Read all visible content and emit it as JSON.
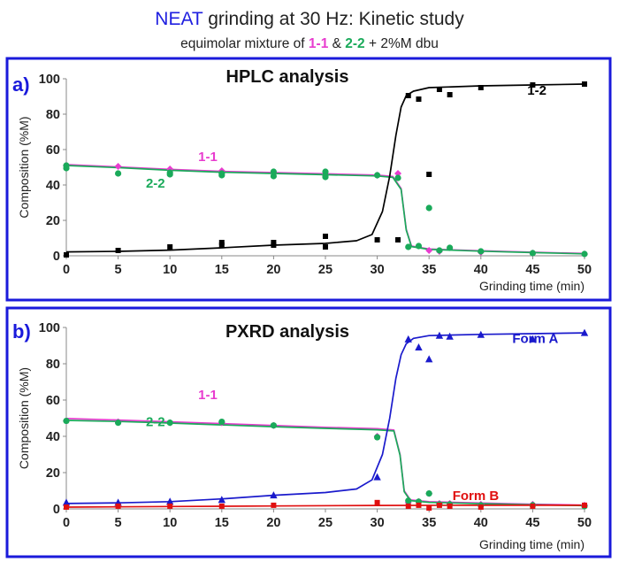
{
  "header": {
    "title_part1": "NEAT",
    "title_part2": " grinding at 30 Hz: Kinetic study",
    "subtitle_prefix": "equimolar mixture of ",
    "subtitle_c1": "1-1",
    "subtitle_amp": " & ",
    "subtitle_c2": "2-2",
    "subtitle_suffix": "  + 2%M dbu"
  },
  "colors": {
    "neat": "#2020e0",
    "magenta": "#e83ccf",
    "green": "#1aaa5a",
    "black": "#000000",
    "blue": "#1a1acc",
    "red": "#e01010",
    "frame": "#1a1adb"
  },
  "chart_data": [
    {
      "type": "scatter",
      "panel_label": "a)",
      "title": "HPLC analysis",
      "ylabel": "Composition (%M)",
      "xlabel": "Grinding time (min)",
      "xlim": [
        0,
        50
      ],
      "ylim": [
        0,
        100
      ],
      "xticks": [
        0,
        5,
        10,
        15,
        20,
        25,
        30,
        35,
        40,
        45,
        50
      ],
      "yticks": [
        0,
        20,
        40,
        60,
        80,
        100
      ],
      "series": [
        {
          "name": "1-1",
          "color": "#e83ccf",
          "marker": "diamond",
          "x": [
            0,
            5,
            10,
            15,
            20,
            25,
            30,
            32,
            35,
            36,
            40,
            45,
            50
          ],
          "y": [
            51,
            50.5,
            49,
            48,
            47,
            46,
            45.5,
            46.5,
            3,
            2.5,
            2,
            1.5,
            1
          ],
          "fit_x": [
            0,
            5,
            10,
            15,
            20,
            25,
            30,
            31.5,
            32.3,
            32.8,
            33.3,
            35,
            40,
            45,
            50
          ],
          "fit_y": [
            51.5,
            50.2,
            48.8,
            47.7,
            47,
            46.3,
            45.6,
            44.8,
            38,
            15,
            5.5,
            3.8,
            2.8,
            2,
            1.3
          ]
        },
        {
          "name": "2-2",
          "color": "#1aaa5a",
          "marker": "circle",
          "x": [
            0,
            0,
            5,
            10,
            10,
            15,
            15,
            20,
            20,
            25,
            25,
            25,
            30,
            32,
            33,
            34,
            35,
            36,
            37,
            40,
            45,
            50
          ],
          "y": [
            51,
            49.5,
            46.5,
            47,
            46,
            46.5,
            45.5,
            47.5,
            45,
            47.5,
            45.5,
            44.5,
            45.5,
            44,
            5,
            5.5,
            27,
            3,
            4.5,
            2.5,
            1.5,
            1
          ],
          "fit_x": [
            0,
            5,
            10,
            15,
            20,
            25,
            30,
            31.5,
            32.3,
            32.8,
            33.3,
            35,
            40,
            45,
            50
          ],
          "fit_y": [
            51,
            49.8,
            48.3,
            47.2,
            46.5,
            45.8,
            45.1,
            44.3,
            37.5,
            14.5,
            5.2,
            3.6,
            2.6,
            1.8,
            1.1
          ]
        },
        {
          "name": "1-2",
          "color": "#000000",
          "marker": "square",
          "x": [
            0,
            5,
            10,
            15,
            15,
            20,
            20,
            25,
            25,
            30,
            32,
            33,
            34,
            35,
            36,
            37,
            40,
            45,
            50
          ],
          "y": [
            0.5,
            3,
            5,
            6,
            7.5,
            6,
            7.5,
            5,
            11,
            9,
            9,
            90.5,
            88.5,
            46,
            94,
            91,
            95,
            96.5,
            97
          ],
          "fit_x": [
            0,
            5,
            10,
            15,
            20,
            25,
            28,
            29.5,
            30.5,
            31.2,
            31.8,
            32.3,
            32.8,
            33.5,
            35,
            40,
            45,
            50
          ],
          "fit_y": [
            2.2,
            2.5,
            3.2,
            4.5,
            6,
            7,
            8.5,
            12,
            25,
            45,
            68,
            84,
            90.5,
            93,
            95,
            96,
            96.5,
            97
          ]
        }
      ],
      "annotations": [
        {
          "text": "1-1",
          "x": 27.3,
          "y": 53.5,
          "color": "#e83ccf"
        },
        {
          "text": "2-2",
          "x": 17.2,
          "y": 38.5,
          "color": "#1aaa5a"
        },
        {
          "text": "1-2",
          "x": 90.8,
          "y": 91,
          "color": "#000000"
        }
      ]
    },
    {
      "type": "scatter",
      "panel_label": "b)",
      "title": "PXRD analysis",
      "ylabel": "Composition (%M)",
      "xlabel": "Grinding time (min)",
      "xlim": [
        0,
        50
      ],
      "ylim": [
        0,
        100
      ],
      "xticks": [
        0,
        5,
        10,
        15,
        20,
        25,
        30,
        35,
        40,
        45,
        50
      ],
      "yticks": [
        0,
        20,
        40,
        60,
        80,
        100
      ],
      "series": [
        {
          "name": "1-1",
          "color": "#e83ccf",
          "marker": "diamond",
          "x": [
            0,
            5,
            10,
            15,
            20,
            30,
            33,
            34,
            35,
            36,
            37,
            40,
            45,
            50
          ],
          "y": [
            48.5,
            48,
            47.5,
            47.5,
            46,
            40,
            3.5,
            4,
            8.5,
            3,
            3,
            2.5,
            2.5,
            2
          ],
          "fit_x": [
            0,
            5,
            10,
            15,
            20,
            25,
            30,
            31.6,
            32.2,
            32.6,
            33.2,
            35,
            40,
            45,
            50
          ],
          "fit_y": [
            49.8,
            49,
            48,
            47,
            46,
            45,
            44.2,
            43.5,
            30,
            10,
            5,
            4,
            3.2,
            2.6,
            2.1
          ]
        },
        {
          "name": "2-2",
          "color": "#1aaa5a",
          "marker": "circle",
          "x": [
            0,
            5,
            10,
            15,
            20,
            30,
            33,
            34,
            35,
            36,
            37,
            40,
            45,
            50
          ],
          "y": [
            48.5,
            47.5,
            47.5,
            48,
            46,
            39.5,
            4.5,
            4,
            8.5,
            2.5,
            2.5,
            2,
            2,
            1.5
          ],
          "fit_x": [
            0,
            5,
            10,
            15,
            20,
            25,
            30,
            31.6,
            32.2,
            32.6,
            33.2,
            35,
            40,
            45,
            50
          ],
          "fit_y": [
            48.8,
            48.2,
            47.3,
            46.3,
            45.3,
            44.4,
            43.6,
            43,
            29.5,
            9.5,
            4.6,
            3.6,
            2.9,
            2.3,
            1.8
          ]
        },
        {
          "name": "Form A",
          "color": "#1a1acc",
          "marker": "triangle",
          "x": [
            0,
            5,
            10,
            15,
            20,
            30,
            33,
            34,
            35,
            36,
            37,
            40,
            45,
            50
          ],
          "y": [
            3.5,
            3.5,
            4,
            5,
            7.5,
            17.5,
            93.5,
            89,
            82.5,
            95.5,
            95,
            96,
            93.5,
            97
          ],
          "fit_x": [
            0,
            5,
            10,
            15,
            20,
            25,
            28,
            29.5,
            30.5,
            31.2,
            31.8,
            32.3,
            32.8,
            33.5,
            35,
            40,
            45,
            50
          ],
          "fit_y": [
            3,
            3.3,
            4,
            5.5,
            7.5,
            9,
            11,
            16,
            30,
            50,
            72,
            85,
            91,
            94,
            95.5,
            96.2,
            96.6,
            97
          ]
        },
        {
          "name": "Form B",
          "color": "#e01010",
          "marker": "square",
          "x": [
            0,
            5,
            10,
            15,
            20,
            30,
            33,
            34,
            35,
            36,
            37,
            40,
            45,
            50
          ],
          "y": [
            1,
            1.5,
            1.5,
            1.5,
            2,
            3.5,
            1.5,
            2,
            0.5,
            2,
            1.5,
            1,
            1.5,
            2
          ],
          "fit_x": [
            0,
            10,
            20,
            30,
            40,
            50
          ],
          "fit_y": [
            1,
            1.3,
            1.6,
            1.9,
            2,
            2
          ]
        }
      ],
      "annotations": [
        {
          "text": "1-1",
          "x": 27.3,
          "y": 60.5,
          "color": "#e83ccf"
        },
        {
          "text": "2-2",
          "x": 17.2,
          "y": 45.5,
          "color": "#1aaa5a"
        },
        {
          "text": "Form A",
          "x": 90.5,
          "y": 91.5,
          "color": "#1a1acc"
        },
        {
          "text": "Form B",
          "x": 79,
          "y": 5,
          "color": "#e01010"
        }
      ]
    }
  ]
}
